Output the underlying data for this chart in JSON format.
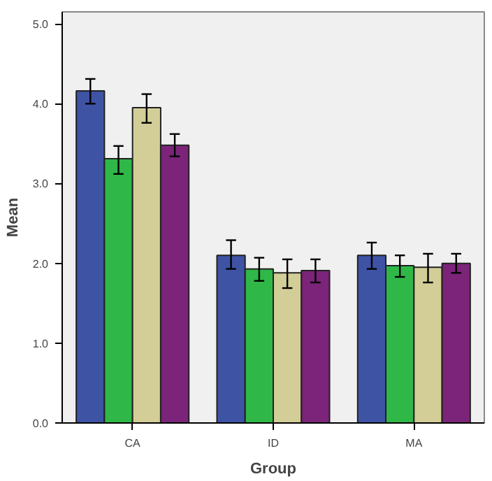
{
  "chart_data": {
    "type": "bar",
    "xlabel": "Group",
    "ylabel": "Mean",
    "categories": [
      "CA",
      "ID",
      "MA"
    ],
    "series": [
      {
        "color": "#3e53a4",
        "values": [
          4.16,
          2.1,
          2.1
        ],
        "errors": [
          [
            4.0,
            4.31
          ],
          [
            1.93,
            2.29
          ],
          [
            1.93,
            2.26
          ]
        ]
      },
      {
        "color": "#2fb848",
        "values": [
          3.31,
          1.93,
          1.97
        ],
        "errors": [
          [
            3.12,
            3.47
          ],
          [
            1.78,
            2.07
          ],
          [
            1.83,
            2.1
          ]
        ]
      },
      {
        "color": "#d3ce97",
        "values": [
          3.95,
          1.88,
          1.95
        ],
        "errors": [
          [
            3.76,
            4.12
          ],
          [
            1.69,
            2.05
          ],
          [
            1.76,
            2.12
          ]
        ]
      },
      {
        "color": "#7b2479",
        "values": [
          3.48,
          1.91,
          2.0
        ],
        "errors": [
          [
            3.34,
            3.62
          ],
          [
            1.76,
            2.05
          ],
          [
            1.88,
            2.12
          ]
        ]
      }
    ],
    "ylim": [
      0,
      5.15
    ],
    "yticks": [
      {
        "value": 0,
        "label": "0.0"
      },
      {
        "value": 1,
        "label": "1.0"
      },
      {
        "value": 2,
        "label": "2.0"
      },
      {
        "value": 3,
        "label": "3.0"
      },
      {
        "value": 4,
        "label": "4.0"
      },
      {
        "value": 5,
        "label": "5.0"
      }
    ],
    "grid": false
  }
}
